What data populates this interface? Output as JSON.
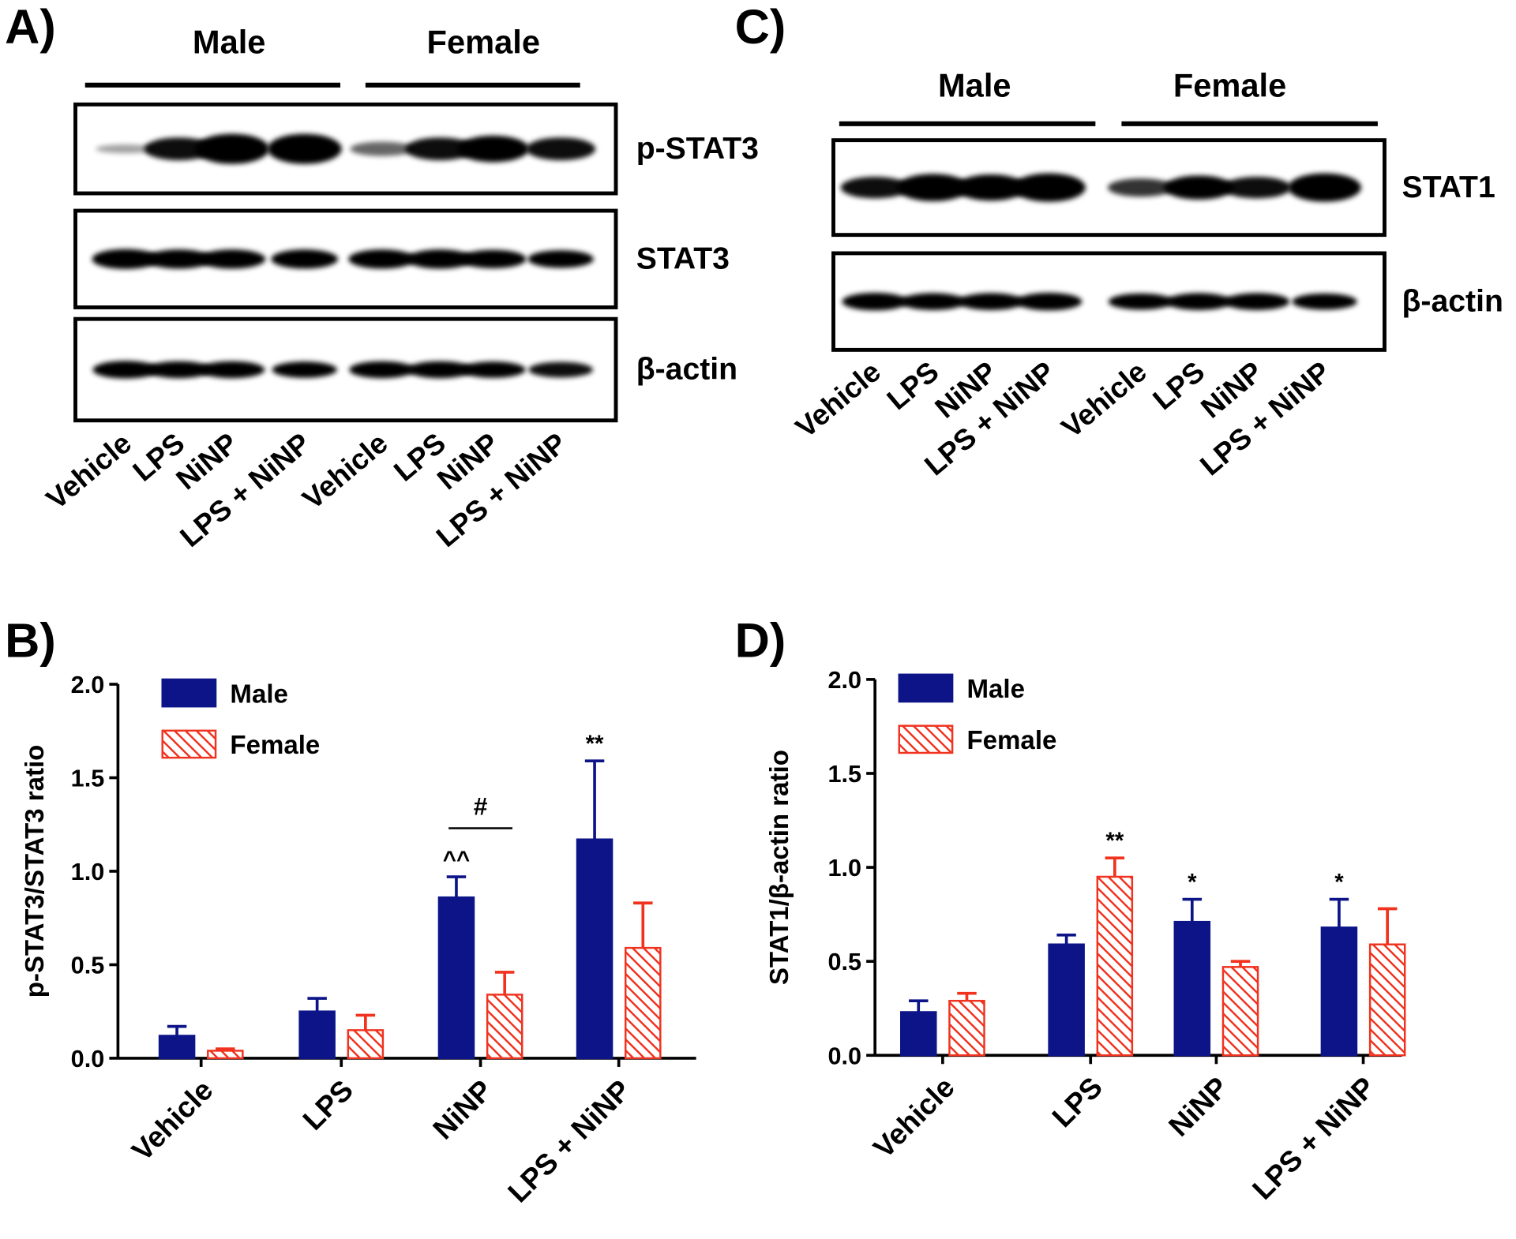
{
  "blots": [
    {
      "panel": "A)",
      "groups": [
        "Male",
        "Female"
      ],
      "rows": [
        "p-STAT3",
        "STAT3",
        "β-actin"
      ],
      "lanes": [
        "Vehicle",
        "LPS",
        "NiNP",
        "LPS + NiNP",
        "Vehicle",
        "LPS",
        "NiNP",
        "LPS + NiNP"
      ]
    },
    {
      "panel": "C)",
      "groups": [
        "Male",
        "Female"
      ],
      "rows": [
        "STAT1",
        "β-actin"
      ],
      "lanes": [
        "Vehicle",
        "LPS",
        "NiNP",
        "LPS + NiNP",
        "Vehicle",
        "LPS",
        "NiNP",
        "LPS + NiNP"
      ]
    }
  ],
  "chart_data": [
    {
      "type": "bar",
      "panel": "B)",
      "y_label": "p-STAT3/STAT3 ratio",
      "categories": [
        "Vehicle",
        "LPS",
        "NiNP",
        "LPS + NiNP"
      ],
      "series": [
        {
          "name": "Male",
          "color": "#0c1488",
          "values": [
            0.12,
            0.25,
            0.86,
            1.17
          ],
          "errors": [
            0.05,
            0.07,
            0.11,
            0.42
          ],
          "annotations": [
            null,
            null,
            "^^",
            "**"
          ]
        },
        {
          "name": "Female",
          "color": "#f0321e",
          "hatch": true,
          "values": [
            0.04,
            0.15,
            0.34,
            0.59
          ],
          "errors": [
            0.01,
            0.08,
            0.12,
            0.24
          ],
          "annotations": [
            null,
            null,
            null,
            null
          ]
        }
      ],
      "bracket": "#",
      "ylim": [
        0,
        2
      ],
      "yticks": [
        {
          "value": 0,
          "label": "0.0"
        },
        {
          "value": 0.5,
          "label": "0.5"
        },
        {
          "value": 1,
          "label": "1.0"
        },
        {
          "value": 1.5,
          "label": "1.5"
        },
        {
          "value": 2,
          "label": "2.0"
        }
      ]
    },
    {
      "type": "bar",
      "panel": "D)",
      "y_label": "STAT1/β-actin ratio",
      "categories": [
        "Vehicle",
        "LPS",
        "NiNP",
        "LPS + NiNP"
      ],
      "series": [
        {
          "name": "Male",
          "color": "#0c1488",
          "values": [
            0.23,
            0.59,
            0.71,
            0.68
          ],
          "errors": [
            0.06,
            0.05,
            0.12,
            0.15
          ],
          "annotations": [
            null,
            null,
            "*",
            "*"
          ]
        },
        {
          "name": "Female",
          "color": "#f0321e",
          "hatch": true,
          "values": [
            0.29,
            0.95,
            0.47,
            0.59
          ],
          "errors": [
            0.04,
            0.1,
            0.03,
            0.19
          ],
          "annotations": [
            null,
            "**",
            null,
            null
          ]
        }
      ],
      "ylim": [
        0,
        2
      ],
      "yticks": [
        {
          "value": 0,
          "label": "0.0"
        },
        {
          "value": 0.5,
          "label": "0.5"
        },
        {
          "value": 1,
          "label": "1.0"
        },
        {
          "value": 1.5,
          "label": "1.5"
        },
        {
          "value": 2,
          "label": "2.0"
        }
      ]
    }
  ]
}
